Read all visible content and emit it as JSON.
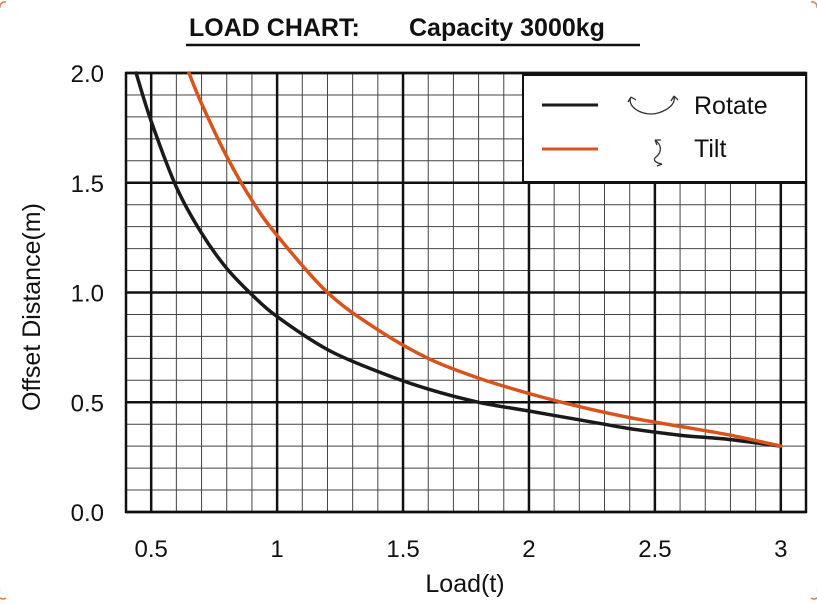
{
  "chart_data": {
    "type": "line",
    "title_part1": "LOAD CHART:",
    "title_part2": "Capacity 3000kg",
    "xlabel": "Load(t)",
    "ylabel": "Offset Distance(m)",
    "xlim": [
      0.4,
      3.1
    ],
    "ylim": [
      0.0,
      2.0
    ],
    "x_ticks": [
      0.5,
      1,
      1.5,
      2,
      2.5,
      3
    ],
    "x_tick_labels": [
      "0.5",
      "1",
      "1.5",
      "2",
      "2.5",
      "3"
    ],
    "y_ticks": [
      0.0,
      0.5,
      1.0,
      1.5,
      2.0
    ],
    "y_tick_labels": [
      "0.0",
      "0.5",
      "1.0",
      "1.5",
      "2.0"
    ],
    "grid": true,
    "legend_position": "top-right",
    "series": [
      {
        "name": "Rotate",
        "color": "#1a1a1a",
        "icon": "rotate-icon",
        "x": [
          0.44,
          0.5,
          0.6,
          0.7,
          0.8,
          0.9,
          1.0,
          1.2,
          1.4,
          1.6,
          1.8,
          2.0,
          2.2,
          2.4,
          2.6,
          2.8,
          3.0
        ],
        "y": [
          2.0,
          1.78,
          1.48,
          1.27,
          1.11,
          0.99,
          0.89,
          0.74,
          0.64,
          0.56,
          0.5,
          0.46,
          0.42,
          0.38,
          0.35,
          0.33,
          0.3
        ]
      },
      {
        "name": "Tilt",
        "color": "#d9531c",
        "icon": "tilt-icon",
        "x": [
          0.65,
          0.7,
          0.8,
          0.9,
          1.0,
          1.2,
          1.4,
          1.6,
          1.8,
          2.0,
          2.2,
          2.4,
          2.6,
          2.8,
          3.0
        ],
        "y": [
          2.0,
          1.86,
          1.62,
          1.42,
          1.26,
          1.0,
          0.83,
          0.7,
          0.61,
          0.54,
          0.48,
          0.43,
          0.39,
          0.35,
          0.3
        ]
      }
    ]
  }
}
